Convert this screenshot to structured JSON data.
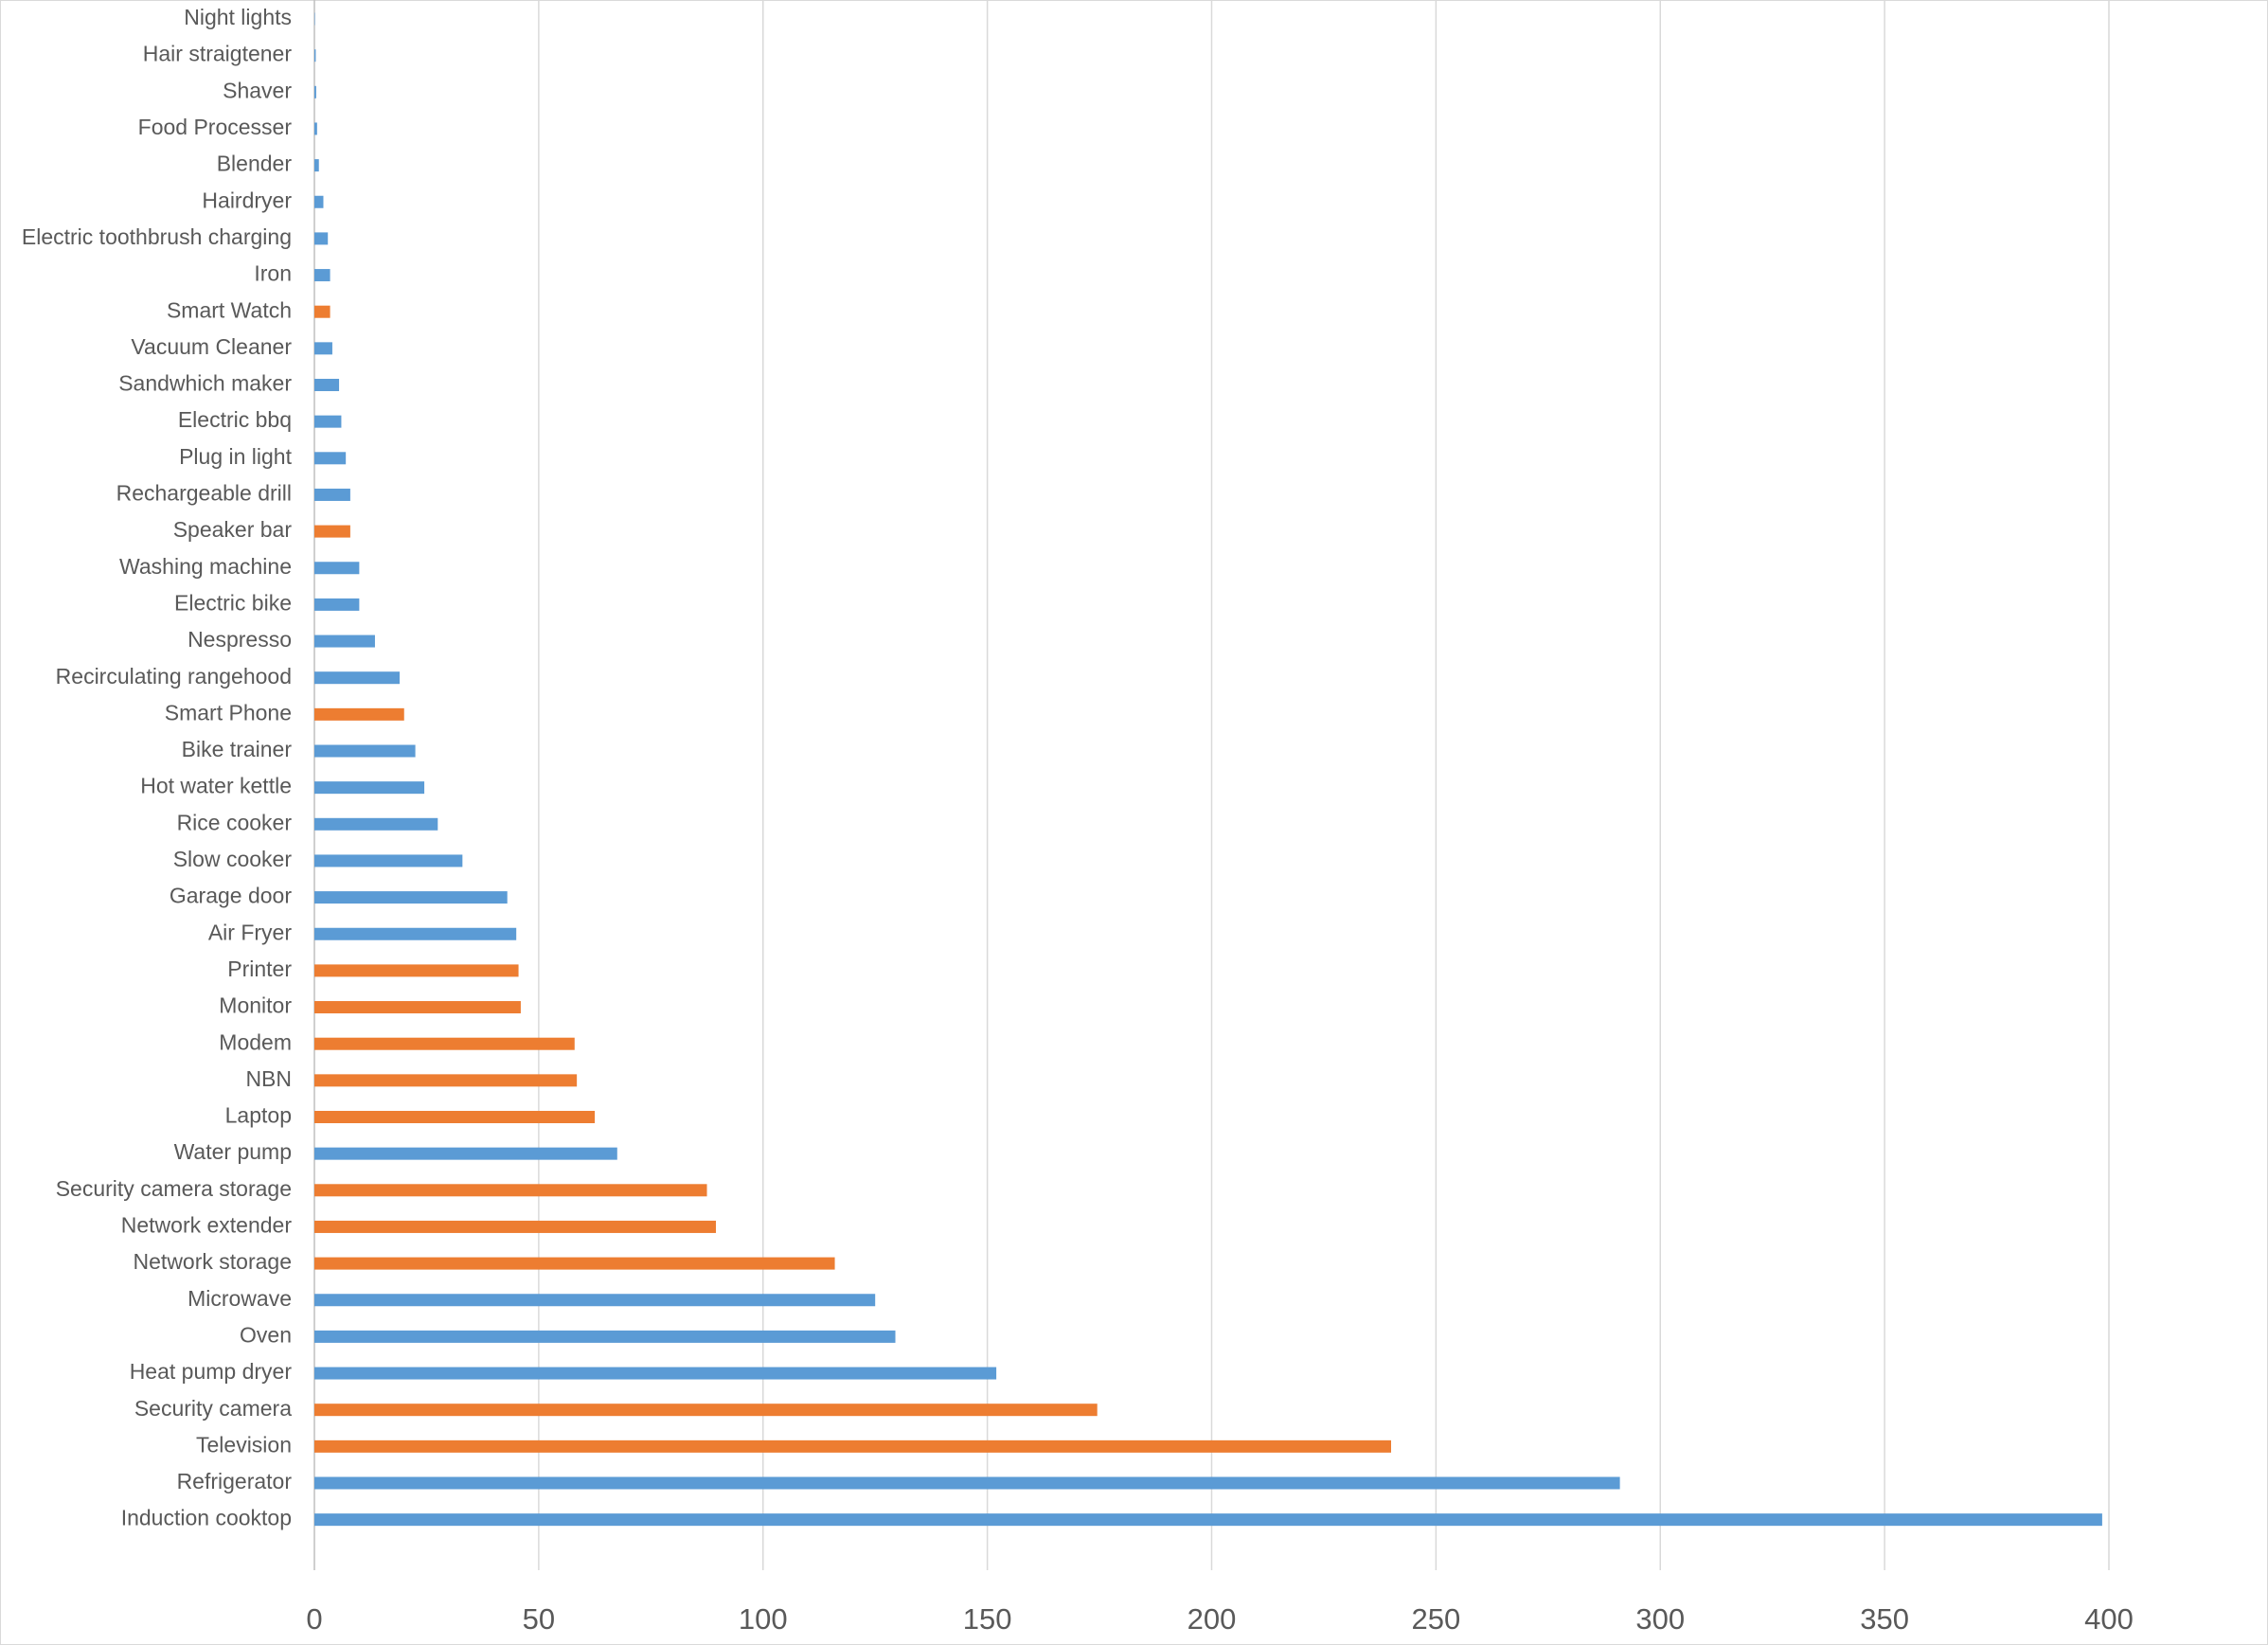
{
  "chart_data": {
    "type": "bar",
    "orientation": "horizontal",
    "categories": [
      "Night lights",
      "Hair straigtener",
      "Shaver",
      "Food Processer",
      "Blender",
      "Hairdryer",
      "Electric toothbrush charging",
      "Iron",
      "Smart Watch",
      "Vacuum Cleaner",
      "Sandwhich maker",
      "Electric bbq",
      "Plug in light",
      "Rechargeable drill",
      "Speaker bar",
      "Washing machine",
      "Electric bike",
      "Nespresso",
      "Recirculating rangehood",
      "Smart Phone",
      "Bike trainer",
      "Hot water kettle",
      "Rice cooker",
      "Slow cooker",
      "Garage door",
      "Air Fryer",
      "Printer",
      "Monitor",
      "Modem",
      "NBN",
      "Laptop",
      "Water pump",
      "Security camera storage",
      "Network extender",
      "Network storage",
      "Microwave",
      "Oven",
      "Heat pump dryer",
      "Security camera",
      "Television",
      "Refrigerator",
      "Induction cooktop"
    ],
    "values": [
      0.1,
      0.3,
      0.4,
      0.6,
      1,
      2,
      3,
      3.5,
      3.5,
      4,
      5.5,
      6,
      7,
      8,
      8,
      10,
      10,
      13.5,
      19,
      20,
      22.5,
      24.5,
      27.5,
      33,
      43,
      45,
      45.5,
      46,
      58,
      58.5,
      62.5,
      67.5,
      87.5,
      89.5,
      116,
      125,
      129.5,
      152,
      174.5,
      240,
      291,
      398.5
    ],
    "colors": [
      "#5b9bd5",
      "#5b9bd5",
      "#5b9bd5",
      "#5b9bd5",
      "#5b9bd5",
      "#5b9bd5",
      "#5b9bd5",
      "#5b9bd5",
      "#ed7d31",
      "#5b9bd5",
      "#5b9bd5",
      "#5b9bd5",
      "#5b9bd5",
      "#5b9bd5",
      "#ed7d31",
      "#5b9bd5",
      "#5b9bd5",
      "#5b9bd5",
      "#5b9bd5",
      "#ed7d31",
      "#5b9bd5",
      "#5b9bd5",
      "#5b9bd5",
      "#5b9bd5",
      "#5b9bd5",
      "#5b9bd5",
      "#ed7d31",
      "#ed7d31",
      "#ed7d31",
      "#ed7d31",
      "#ed7d31",
      "#5b9bd5",
      "#ed7d31",
      "#ed7d31",
      "#ed7d31",
      "#5b9bd5",
      "#5b9bd5",
      "#5b9bd5",
      "#ed7d31",
      "#ed7d31",
      "#5b9bd5",
      "#5b9bd5"
    ],
    "xlim": [
      0,
      400
    ],
    "xticks": [
      0,
      50,
      100,
      150,
      200,
      250,
      300,
      350,
      400
    ],
    "grid": true
  }
}
